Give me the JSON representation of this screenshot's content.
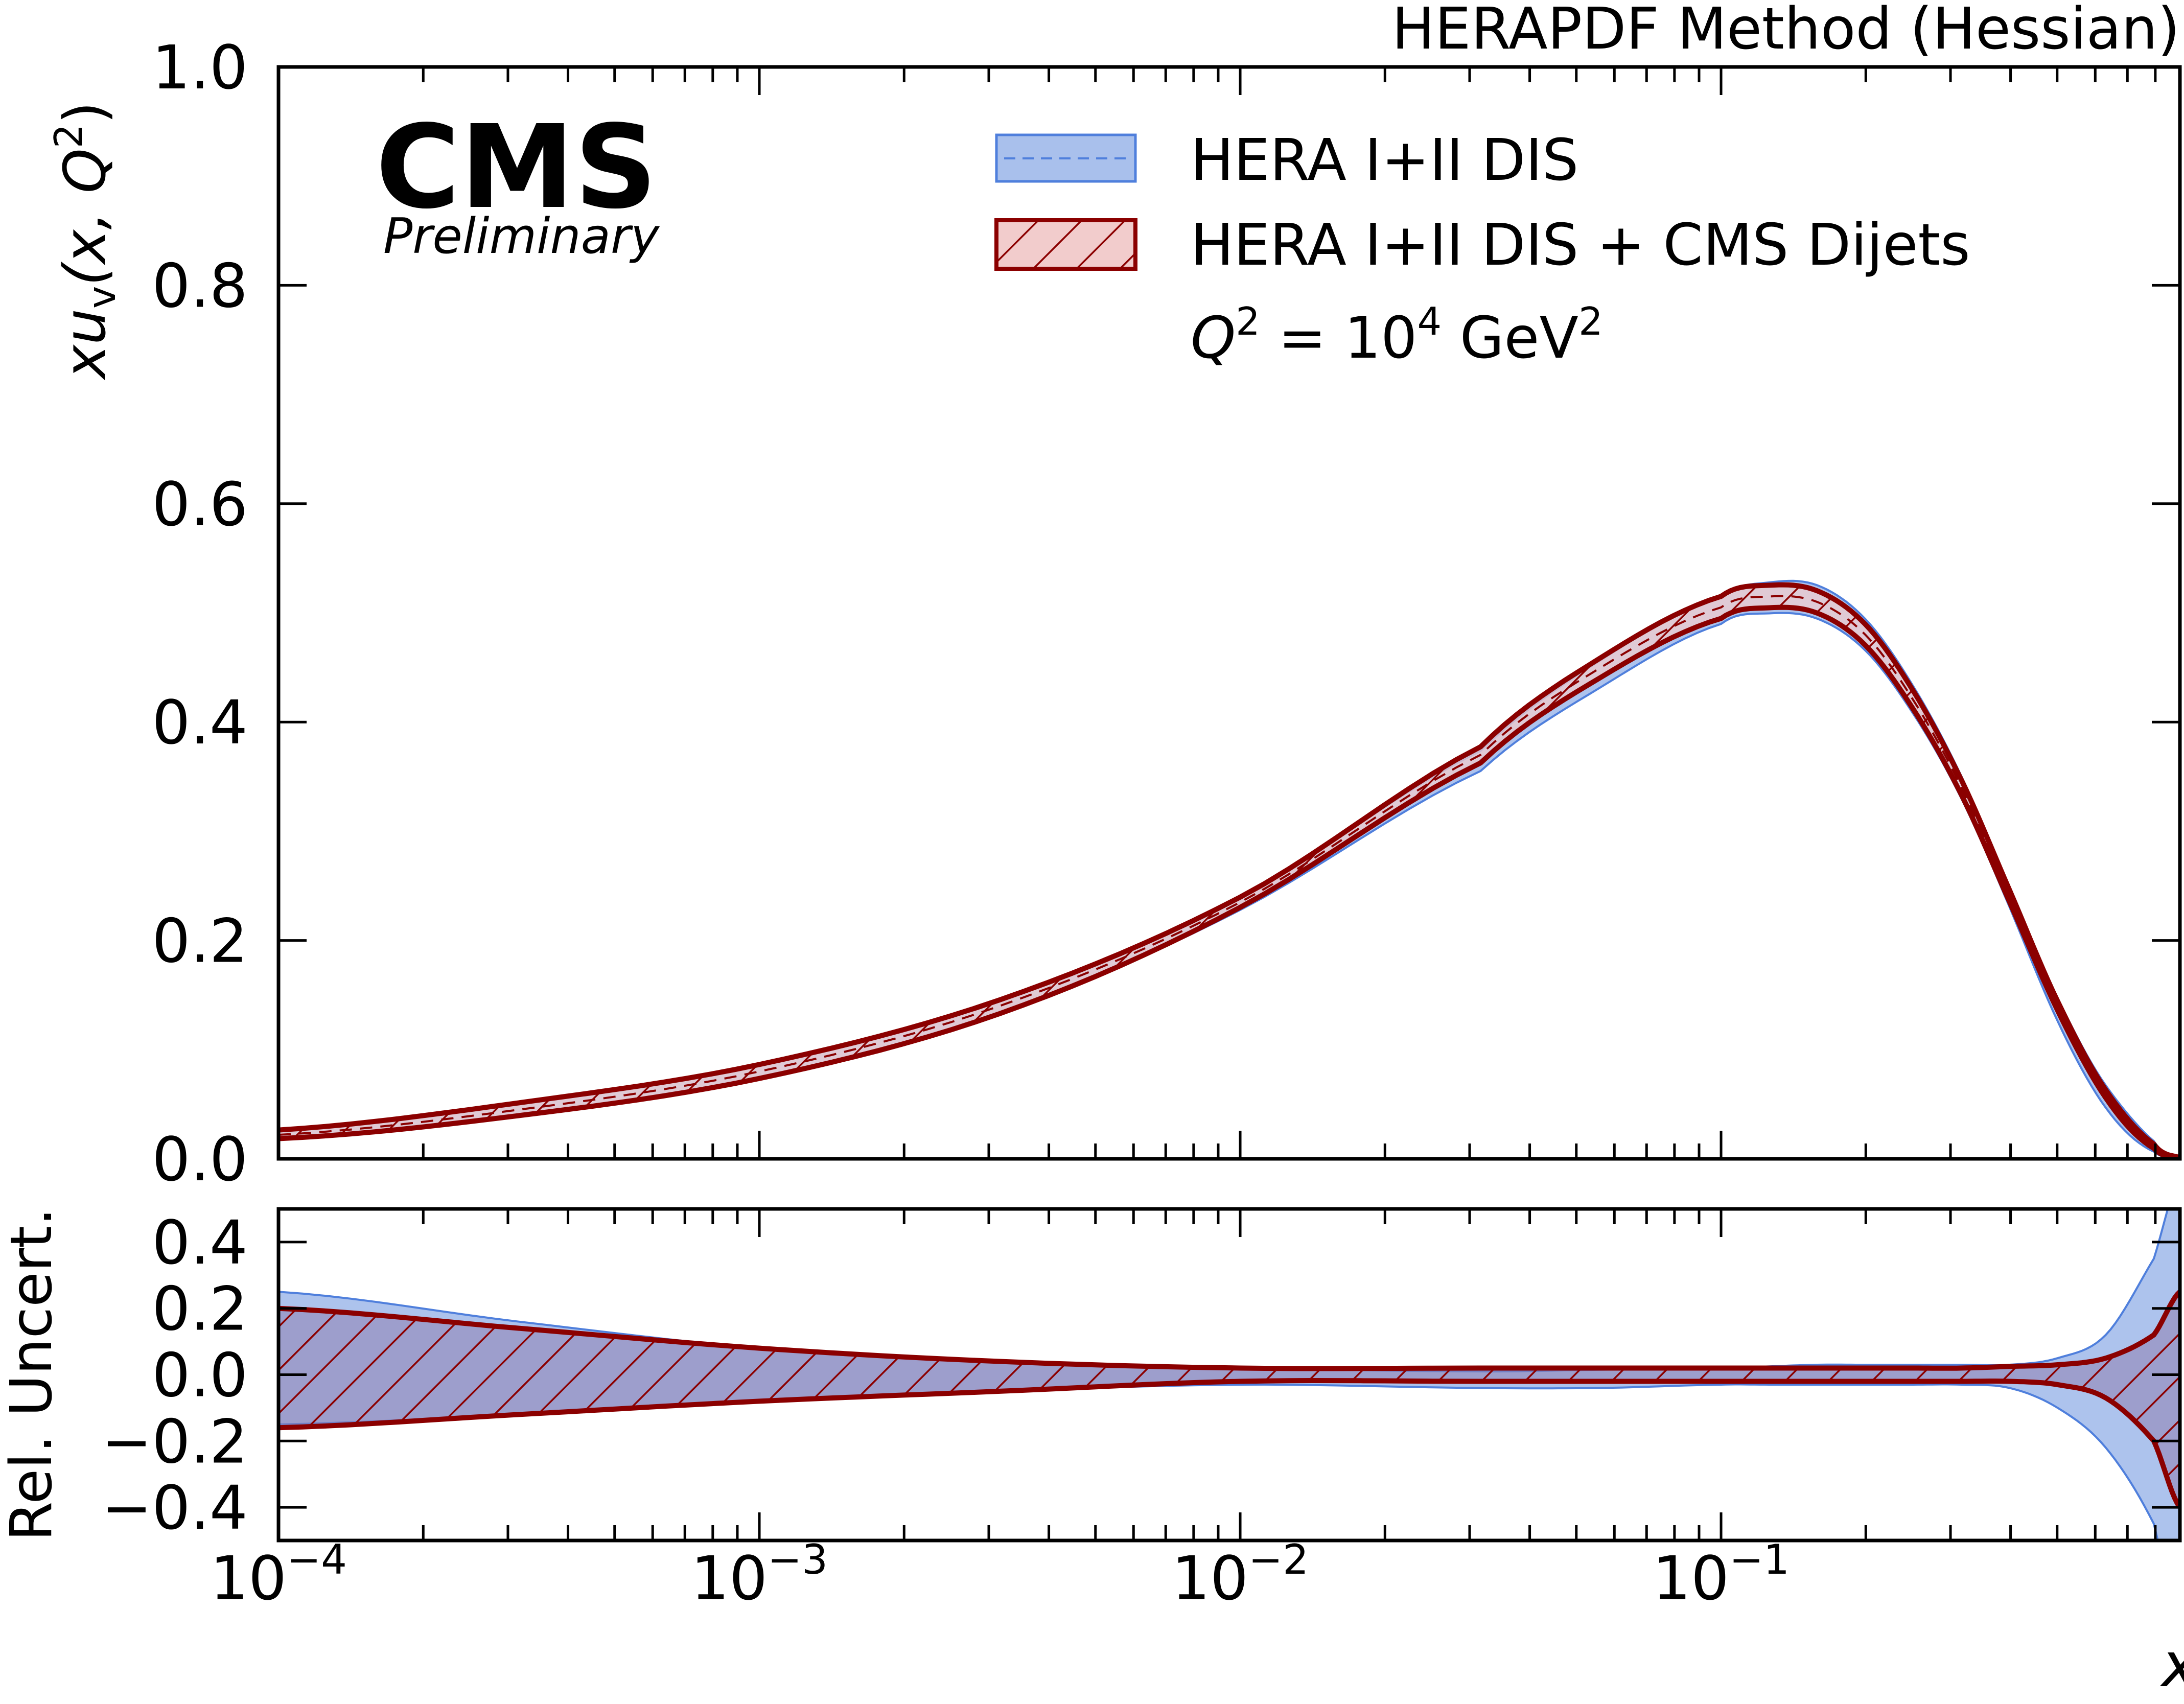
{
  "chart_data": {
    "type": "area",
    "title": "HERAPDF Method (Hessian)",
    "experiment": "CMS",
    "status": "Preliminary",
    "xlabel": "x",
    "ylabel_main": "xu_v(x, Q^2)",
    "ylabel_main_parts": {
      "a": "xu",
      "sub": "v",
      "b": "(x, Q",
      "sup": "2",
      "c": ")"
    },
    "ylabel_ratio": "Rel. Uncert.",
    "annotation": {
      "q": "Q",
      "sup1": "2",
      "eq": " = 10",
      "sup2": "4",
      "unit": " GeV",
      "sup3": "2"
    },
    "xscale": "log",
    "xlim": [
      0.0001,
      0.9
    ],
    "ylim_main": [
      0.0,
      1.0
    ],
    "ylim_ratio": [
      -0.5,
      0.5
    ],
    "x_ticks": [
      {
        "value": 0.0001,
        "base": "10",
        "exp": "−4"
      },
      {
        "value": 0.001,
        "base": "10",
        "exp": "−3"
      },
      {
        "value": 0.01,
        "base": "10",
        "exp": "−2"
      },
      {
        "value": 0.1,
        "base": "10",
        "exp": "−1"
      }
    ],
    "y_ticks_main": [
      {
        "value": 0.0,
        "label": "0.0"
      },
      {
        "value": 0.2,
        "label": "0.2"
      },
      {
        "value": 0.4,
        "label": "0.4"
      },
      {
        "value": 0.6,
        "label": "0.6"
      },
      {
        "value": 0.8,
        "label": "0.8"
      },
      {
        "value": 1.0,
        "label": "1.0"
      }
    ],
    "y_ticks_ratio": [
      {
        "value": 0.4,
        "label": "0.4"
      },
      {
        "value": 0.2,
        "label": "0.2"
      },
      {
        "value": 0.0,
        "label": "0.0"
      },
      {
        "value": -0.2,
        "label": "−0.2"
      },
      {
        "value": -0.4,
        "label": "−0.4"
      }
    ],
    "legend": [
      {
        "label": "HERA I+II DIS",
        "fill": "#a9c0ec",
        "edge": "#4f7fdc",
        "hatch": false
      },
      {
        "label": "HERA I+II DIS + CMS Dijets",
        "fill": "#f2cccc",
        "edge": "#8b0000",
        "hatch": true
      }
    ],
    "legend_placement": "top-right",
    "log10x": [
      -4,
      -3.5,
      -3,
      -2.5,
      -2,
      -1.5,
      -1.25,
      -1,
      -0.9,
      -0.8,
      -0.7,
      -0.6,
      -0.5,
      -0.4,
      -0.3,
      -0.2,
      -0.1,
      -0.046
    ],
    "central": [
      0.022,
      0.045,
      0.08,
      0.14,
      0.235,
      0.37,
      0.45,
      0.505,
      0.515,
      0.51,
      0.48,
      0.42,
      0.34,
      0.24,
      0.14,
      0.06,
      0.012,
      0.001
    ],
    "series": [
      {
        "name": "HERA I+II DIS",
        "rel_up": [
          0.25,
          0.16,
          0.08,
          0.04,
          0.02,
          0.01,
          0.015,
          0.02,
          0.025,
          0.03,
          0.03,
          0.03,
          0.03,
          0.03,
          0.05,
          0.12,
          0.35,
          0.6
        ],
        "rel_down": [
          -0.15,
          -0.12,
          -0.08,
          -0.05,
          -0.03,
          -0.04,
          -0.04,
          -0.03,
          -0.03,
          -0.03,
          -0.03,
          -0.03,
          -0.03,
          -0.04,
          -0.1,
          -0.22,
          -0.45,
          -0.8
        ]
      },
      {
        "name": "HERA I+II DIS + CMS Dijets",
        "rel_up": [
          0.2,
          0.14,
          0.08,
          0.04,
          0.02,
          0.02,
          0.02,
          0.02,
          0.02,
          0.02,
          0.02,
          0.02,
          0.02,
          0.025,
          0.03,
          0.05,
          0.12,
          0.25
        ],
        "rel_down": [
          -0.16,
          -0.12,
          -0.08,
          -0.05,
          -0.02,
          -0.02,
          -0.02,
          -0.02,
          -0.02,
          -0.02,
          -0.02,
          -0.02,
          -0.02,
          -0.02,
          -0.03,
          -0.07,
          -0.2,
          -0.4
        ]
      }
    ]
  }
}
